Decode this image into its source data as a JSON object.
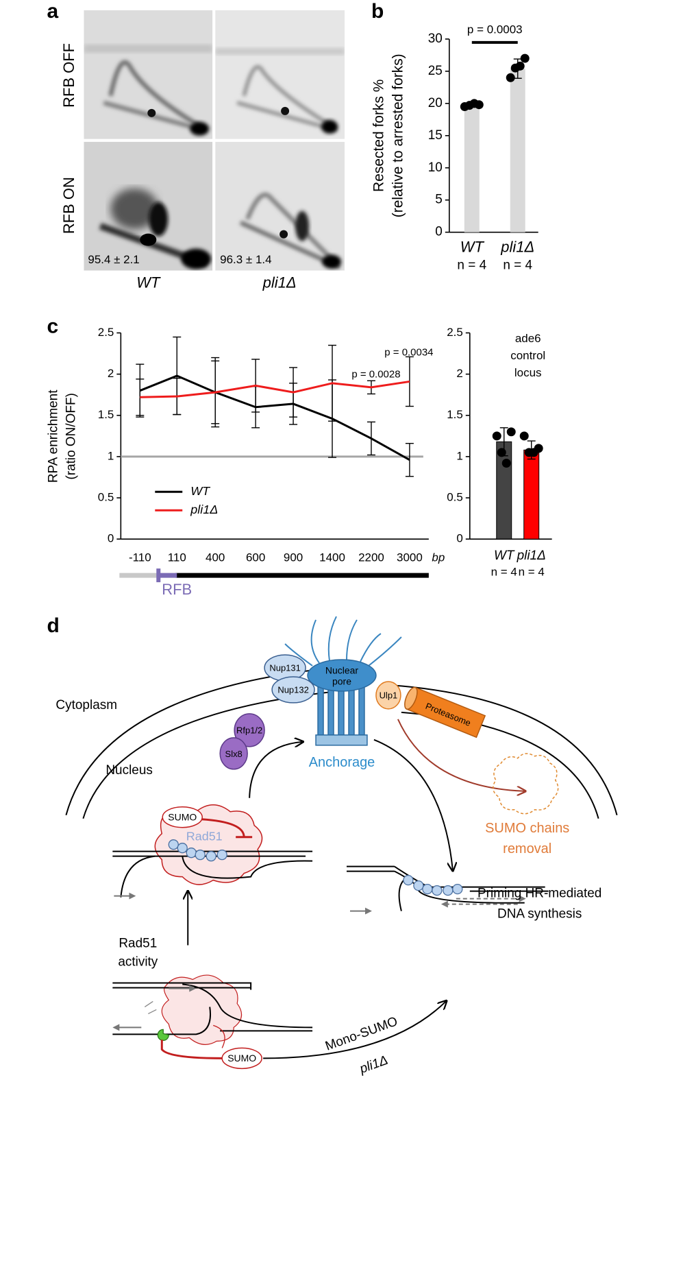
{
  "panel_labels": [
    "a",
    "b",
    "c",
    "d"
  ],
  "panel_a": {
    "rows": [
      "RFB OFF",
      "RFB ON"
    ],
    "columns": [
      "WT",
      "pli1Δ"
    ],
    "annotations": [
      "95.4 ± 2.1",
      "96.3 ± 1.4"
    ]
  },
  "chart_data": [
    {
      "type": "bar",
      "ylabel": [
        "Resected forks %",
        "(relative to arrested forks)"
      ],
      "categories": [
        "WT",
        "pli1Δ"
      ],
      "sample_sizes": [
        "n = 4",
        "n = 4"
      ],
      "values": [
        19.7,
        25.4
      ],
      "errors": [
        0.3,
        1.5
      ],
      "points": [
        [
          19.5,
          19.7,
          20.0,
          19.8
        ],
        [
          24.0,
          25.5,
          25.8,
          27.0
        ]
      ],
      "colors": [
        "#d9d9d9",
        "#d9d9d9"
      ],
      "point_color": "#000000",
      "ylim": [
        0,
        30
      ],
      "yticks": [
        0,
        5,
        10,
        15,
        20,
        25,
        30
      ],
      "annotation": "p = 0.0003"
    },
    {
      "type": "line",
      "ylabel": [
        "RPA enrichment",
        "(ratio ON/OFF)"
      ],
      "categories": [
        "-110",
        "110",
        "400",
        "600",
        "900",
        "1400",
        "2200",
        "3000"
      ],
      "xlabel": "bp",
      "series": [
        {
          "name": "WT",
          "color": "#000000",
          "values": [
            1.8,
            1.98,
            1.78,
            1.6,
            1.64,
            1.46,
            1.22,
            0.96
          ],
          "errors": [
            0.32,
            0.47,
            0.38,
            0.25,
            0.25,
            0.47,
            0.2,
            0.2
          ]
        },
        {
          "name": "pli1Δ",
          "color": "#ee1c1c",
          "values": [
            1.72,
            1.73,
            1.78,
            1.86,
            1.78,
            1.89,
            1.84,
            1.91
          ],
          "errors": [
            0.22,
            0.22,
            0.42,
            0.32,
            0.3,
            0.46,
            0.08,
            0.3
          ]
        }
      ],
      "reference_line": 1,
      "ylim": [
        0,
        2.5
      ],
      "yticks": [
        0,
        0.5,
        1,
        1.5,
        2,
        2.5
      ],
      "annotations": [
        "p = 0.0028",
        "p = 0.0034"
      ],
      "locus_label": "RFB"
    },
    {
      "type": "bar",
      "title": [
        "ade6",
        "control",
        "locus"
      ],
      "categories": [
        "WT",
        "pli1Δ"
      ],
      "sample_sizes": [
        "n = 4",
        "n = 4"
      ],
      "values": [
        1.18,
        1.08
      ],
      "errors": [
        0.17,
        0.11
      ],
      "points": [
        [
          1.25,
          1.05,
          0.92,
          1.3
        ],
        [
          1.25,
          1.05,
          1.05,
          1.1
        ]
      ],
      "colors": [
        "#444444",
        "#ff0000"
      ],
      "point_color": "#000000",
      "ylim": [
        0,
        2.5
      ],
      "yticks": [
        0,
        0.5,
        1,
        1.5,
        2,
        2.5
      ]
    }
  ],
  "diagram": {
    "compartments": [
      "Cytoplasm",
      "Nucleus"
    ],
    "pore": [
      "Nuclear",
      "pore"
    ],
    "nups": [
      "Nup131",
      "Nup132"
    ],
    "ulp1": "Ulp1",
    "proteasome": "Proteasome",
    "ligases": [
      "Rfp1/2",
      "Slx8"
    ],
    "anchorage": "Anchorage",
    "removal": [
      "SUMO chains",
      "removal"
    ],
    "sumo_top": "SUMO",
    "rad51": "Rad51",
    "priming": [
      "Priming HR-mediated",
      "DNA synthesis"
    ],
    "activity": [
      "Rad51",
      "activity"
    ],
    "sumo_bottom": "SUMO",
    "mono": [
      "Mono-SUMO",
      "pli1Δ"
    ]
  }
}
